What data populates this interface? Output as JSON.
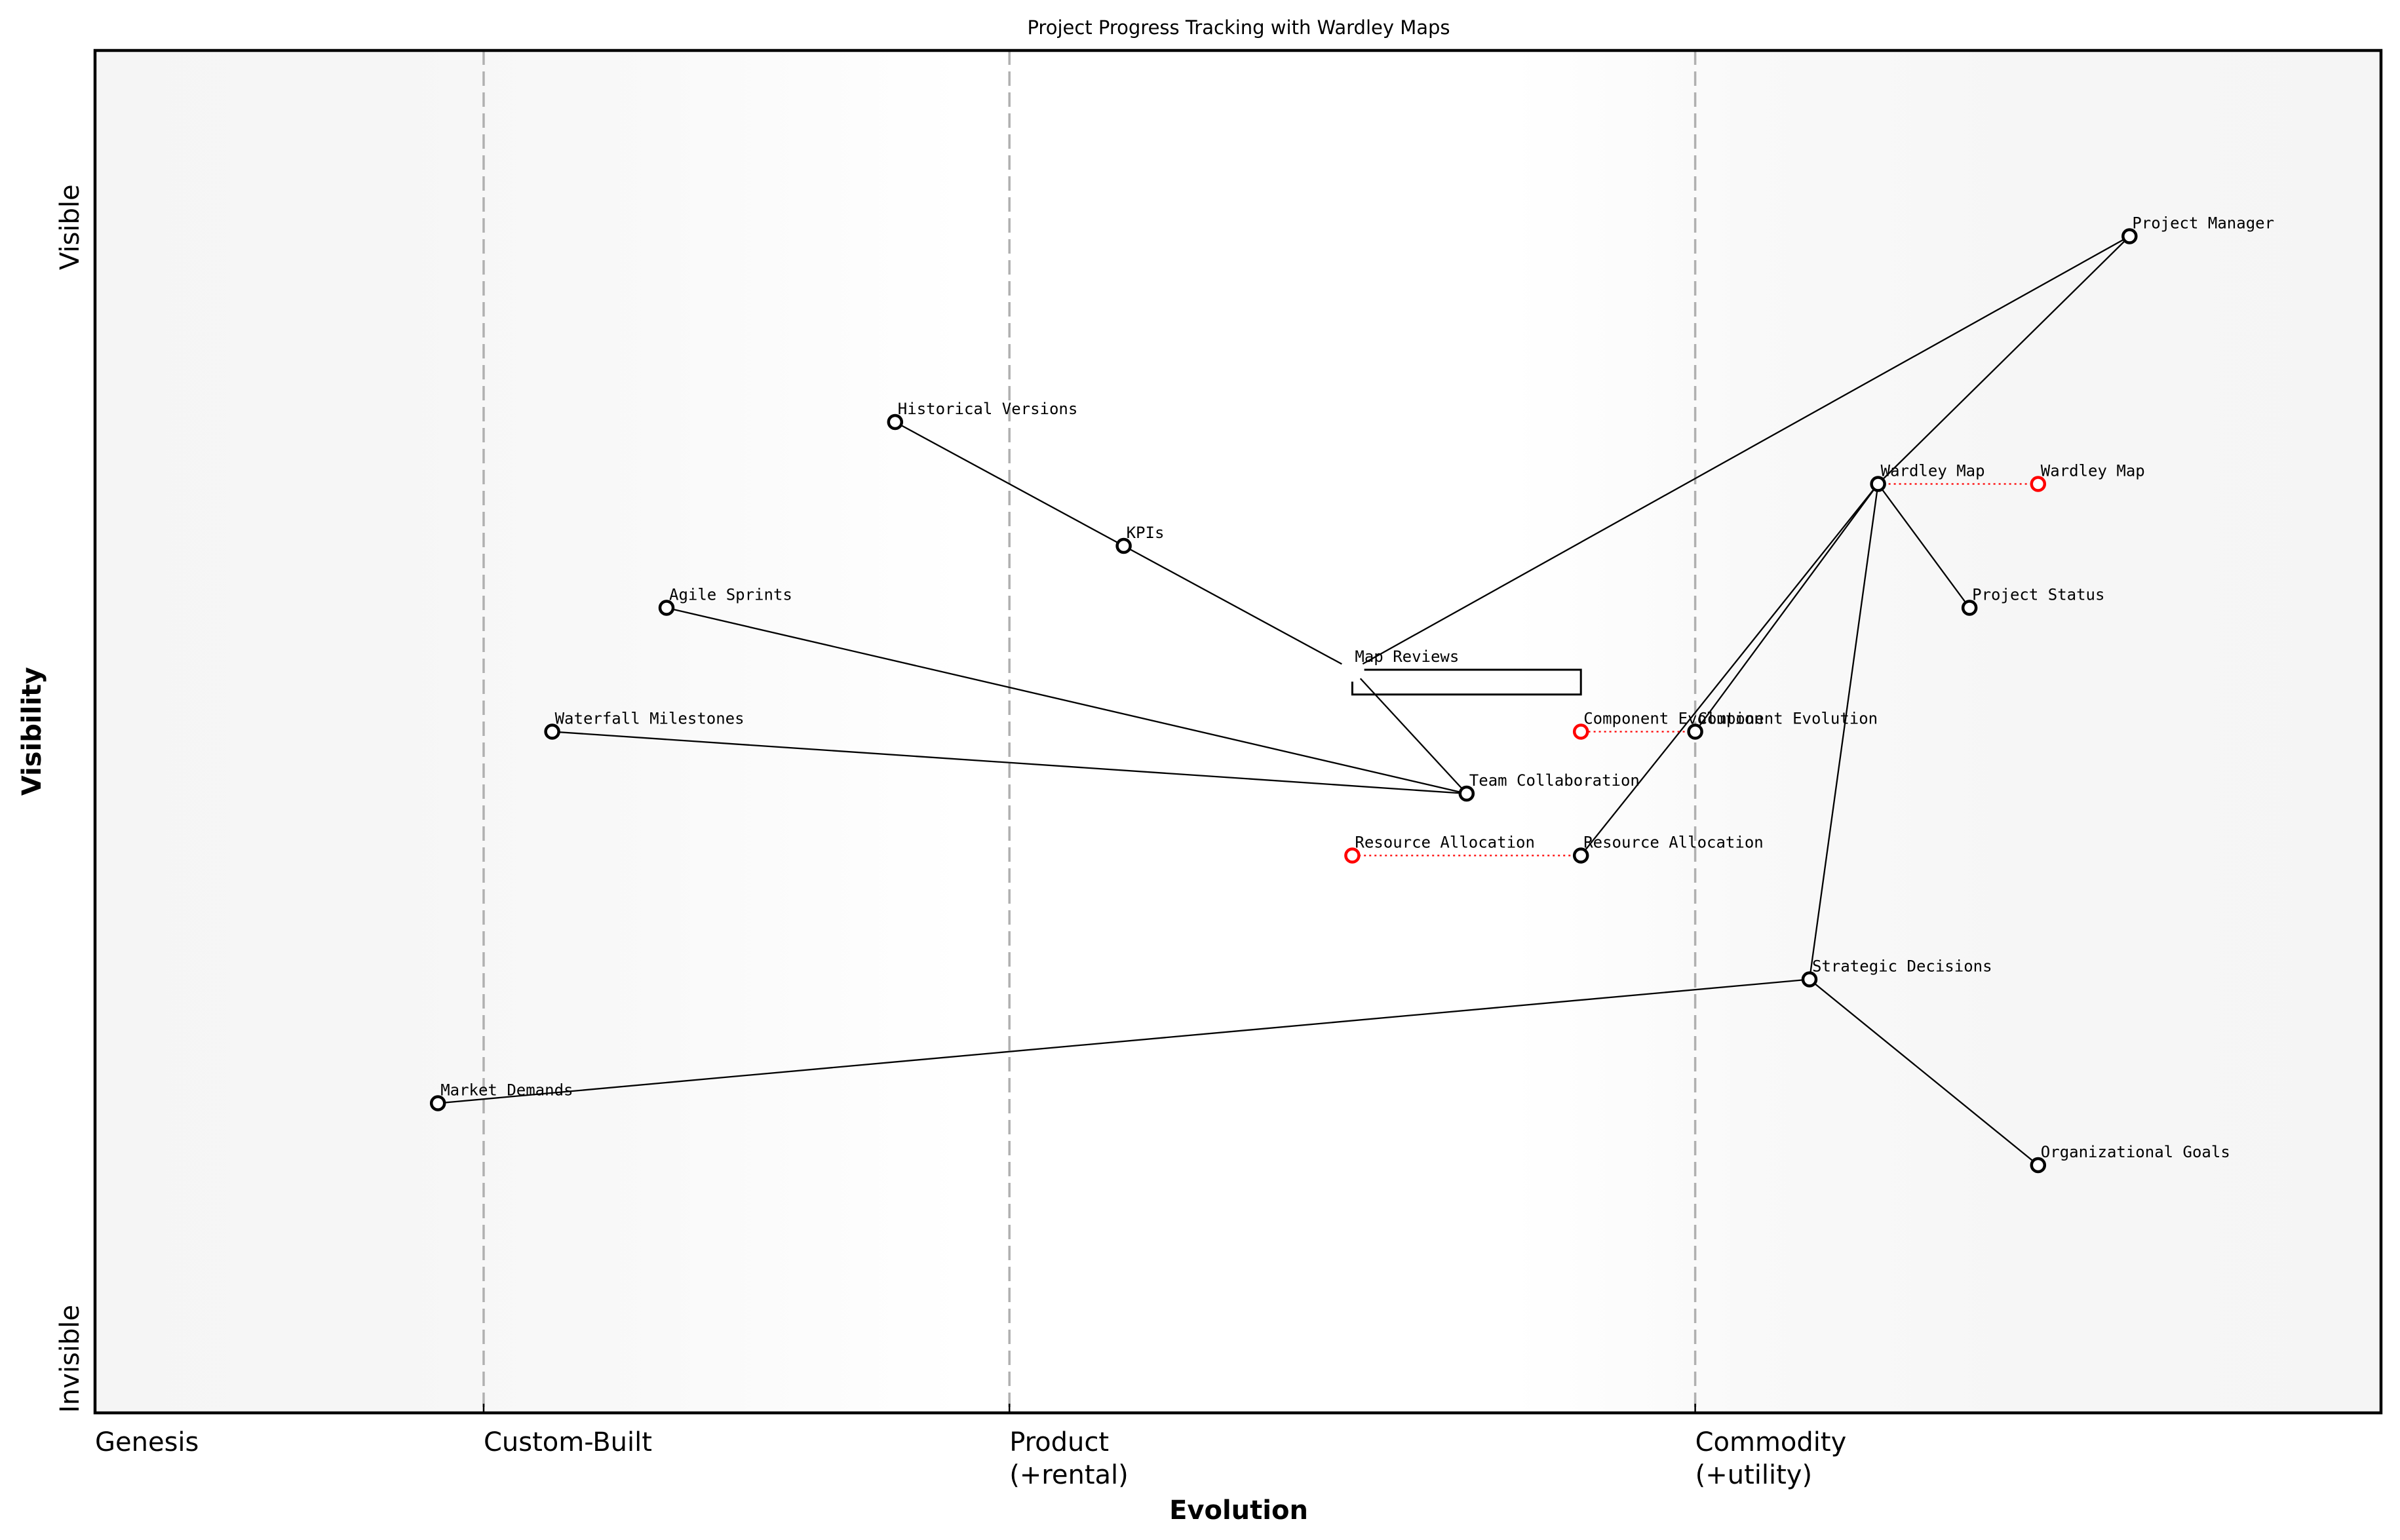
{
  "title": "Project Progress Tracking with Wardley Maps",
  "x_axis": {
    "label": "Evolution",
    "stages": [
      {
        "label_line1": "Genesis",
        "label_line2": "",
        "x": 0.0
      },
      {
        "label_line1": "Custom-Built",
        "label_line2": "",
        "x": 0.17
      },
      {
        "label_line1": "Product",
        "label_line2": "(+rental)",
        "x": 0.4
      },
      {
        "label_line1": "Commodity",
        "label_line2": "(+utility)",
        "x": 0.7
      }
    ]
  },
  "y_axis": {
    "label": "Visibility",
    "top_label": "Visible",
    "bottom_label": "Invisible"
  },
  "colors": {
    "node_stroke": "#000000",
    "evolved_stroke": "#ff0000",
    "stage_line": "#b0b0b0",
    "background_edge": "#f5f5f5",
    "background_center": "#ffffff"
  },
  "chart_data": {
    "type": "scatter",
    "subtype": "wardley-map",
    "title": "Project Progress Tracking with Wardley Maps",
    "xlabel": "Evolution",
    "ylabel": "Visibility",
    "xlim": [
      0,
      1
    ],
    "ylim": [
      0,
      1.1
    ],
    "grid": false,
    "x_ticks": [
      {
        "x": 0.0,
        "label": "Genesis"
      },
      {
        "x": 0.17,
        "label": "Custom-Built"
      },
      {
        "x": 0.4,
        "label": "Product\n(+rental)"
      },
      {
        "x": 0.7,
        "label": "Commodity\n(+utility)"
      }
    ],
    "stage_dividers": [
      0.17,
      0.4,
      0.7
    ],
    "components": [
      {
        "id": "pm",
        "name": "Project Manager",
        "x": 0.89,
        "y": 0.95
      },
      {
        "id": "hv",
        "name": "Historical Versions",
        "x": 0.35,
        "y": 0.8
      },
      {
        "id": "wm",
        "name": "Wardley Map",
        "x": 0.78,
        "y": 0.75
      },
      {
        "id": "kpi",
        "name": "KPIs",
        "x": 0.45,
        "y": 0.7
      },
      {
        "id": "as",
        "name": "Agile Sprints",
        "x": 0.25,
        "y": 0.65
      },
      {
        "id": "ps",
        "name": "Project Status",
        "x": 0.82,
        "y": 0.65
      },
      {
        "id": "mr",
        "name": "Map Reviews",
        "x": 0.55,
        "y": 0.6,
        "hidden_marker": true
      },
      {
        "id": "wf",
        "name": "Waterfall Milestones",
        "x": 0.2,
        "y": 0.55
      },
      {
        "id": "ce",
        "name": "Component Evolution",
        "x": 0.7,
        "y": 0.55
      },
      {
        "id": "tc",
        "name": "Team Collaboration",
        "x": 0.6,
        "y": 0.5
      },
      {
        "id": "ra",
        "name": "Resource Allocation",
        "x": 0.65,
        "y": 0.45
      },
      {
        "id": "sd",
        "name": "Strategic Decisions",
        "x": 0.75,
        "y": 0.35
      },
      {
        "id": "md",
        "name": "Market Demands",
        "x": 0.15,
        "y": 0.25
      },
      {
        "id": "og",
        "name": "Organizational Goals",
        "x": 0.85,
        "y": 0.2
      }
    ],
    "links": [
      [
        "pm",
        "mr"
      ],
      [
        "pm",
        "wm"
      ],
      [
        "hv",
        "kpi"
      ],
      [
        "kpi",
        "mr"
      ],
      [
        "mr",
        "tc"
      ],
      [
        "as",
        "tc"
      ],
      [
        "wf",
        "tc"
      ],
      [
        "wm",
        "ce"
      ],
      [
        "wm",
        "ra"
      ],
      [
        "wm",
        "ps"
      ],
      [
        "wm",
        "sd"
      ],
      [
        "sd",
        "md"
      ],
      [
        "sd",
        "og"
      ]
    ],
    "evolutions": [
      {
        "name": "Wardley Map",
        "from_x": 0.78,
        "to_x": 0.85,
        "y": 0.75
      },
      {
        "name": "Component Evolution",
        "from_x": 0.7,
        "to_x": 0.65,
        "y": 0.55
      },
      {
        "name": "Resource Allocation",
        "from_x": 0.65,
        "to_x": 0.55,
        "y": 0.45
      }
    ],
    "pipelines": [
      {
        "name": "Map Reviews",
        "x_start": 0.55,
        "x_end": 0.65,
        "y": 0.6,
        "height": 0.02
      }
    ]
  }
}
